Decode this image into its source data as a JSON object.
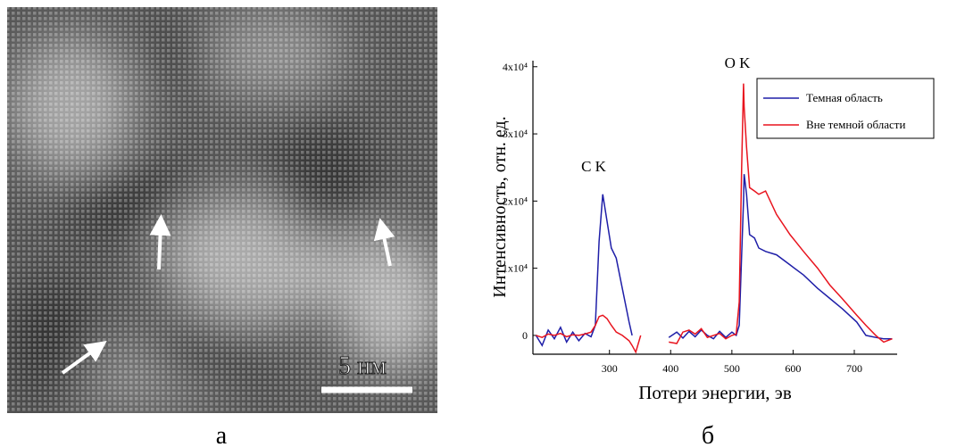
{
  "image": {
    "scale_label": "5 нм",
    "panel_label": "а"
  },
  "chart_data": {
    "type": "line",
    "panel_label": "б",
    "xlabel": "Потери энергии, эв",
    "ylabel": "Интенсивность, отн. ед.",
    "annotations": [
      "C K",
      "O K"
    ],
    "x": [
      180,
      190,
      200,
      210,
      220,
      230,
      240,
      250,
      260,
      270,
      277,
      283,
      289,
      296,
      303,
      311,
      321,
      332,
      337,
      343,
      351,
      375,
      397,
      410,
      420,
      430,
      440,
      450,
      460,
      470,
      480,
      490,
      500,
      507,
      512,
      516,
      519,
      520,
      524,
      529,
      537,
      544,
      555,
      573,
      595,
      617,
      640,
      660,
      680,
      704,
      719,
      735,
      748,
      762
    ],
    "series": [
      {
        "name": "Темная область",
        "color": "#1f1fa8",
        "values": [
          0,
          -1500,
          800,
          -500,
          1200,
          -1000,
          500,
          -800,
          300,
          -200,
          1500,
          14000,
          21000,
          17000,
          13000,
          11500,
          7000,
          2000,
          0,
          null,
          null,
          null,
          -300,
          500,
          -400,
          600,
          -200,
          800,
          0,
          -500,
          600,
          -300,
          500,
          0,
          1500,
          12000,
          20000,
          24000,
          21000,
          15000,
          14500,
          13000,
          12500,
          12000,
          10500,
          9000,
          7000,
          5500,
          4000,
          2000,
          0,
          -300,
          -500,
          -500
        ]
      },
      {
        "name": "Вне темной области",
        "color": "#e8141e",
        "values": [
          0,
          -300,
          200,
          0,
          300,
          -200,
          100,
          0,
          200,
          500,
          1500,
          2800,
          3000,
          2500,
          1500,
          500,
          0,
          -800,
          -1500,
          -2500,
          0,
          null,
          -1000,
          -1200,
          500,
          800,
          200,
          1000,
          -300,
          0,
          300,
          -500,
          0,
          200,
          5000,
          25000,
          37500,
          34000,
          28000,
          22000,
          21500,
          21000,
          21500,
          18000,
          15000,
          12500,
          10000,
          7500,
          5500,
          3000,
          1500,
          0,
          -1000,
          -500
        ]
      }
    ],
    "xlim": [
      175,
      770
    ],
    "xticks": [
      300,
      400,
      500,
      600,
      700
    ],
    "ylim": [
      -2800,
      40900
    ],
    "yticks": [
      0,
      {
        "value": 10000,
        "label": "1x10⁴"
      },
      {
        "value": 20000,
        "label": "2x10⁴"
      },
      {
        "value": 30000,
        "label": "3x10⁴"
      },
      {
        "value": 40000,
        "label": "4x10⁴"
      }
    ],
    "legend": "upper right",
    "grid": false
  }
}
